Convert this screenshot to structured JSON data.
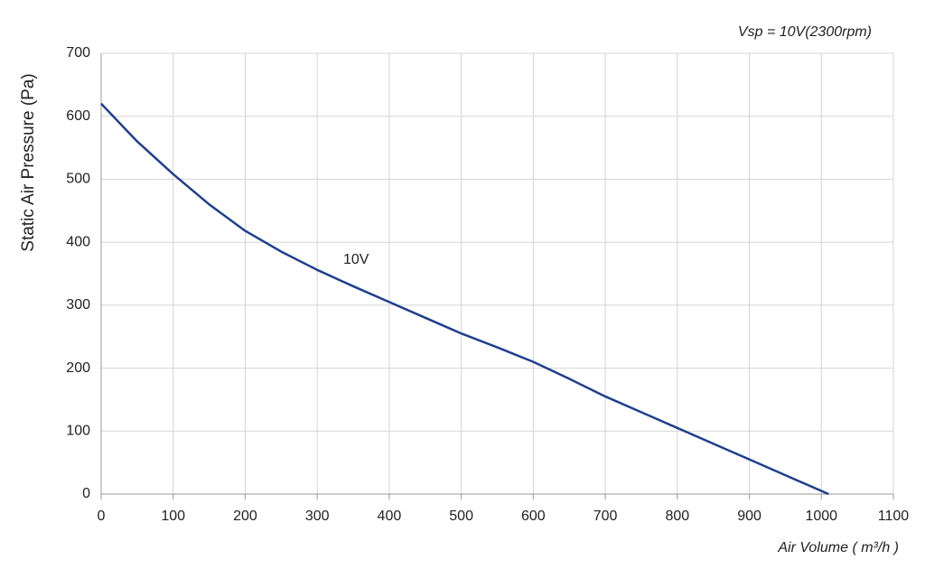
{
  "chart_data": {
    "type": "line",
    "subtitle": "Vsp = 10V(2300rpm)",
    "x_label": "Air Volume ( m³/h )",
    "y_label": "Static Air Pressure  (Pa)",
    "annotation": "10V",
    "x": [
      0,
      50,
      100,
      150,
      200,
      250,
      300,
      350,
      400,
      450,
      500,
      550,
      600,
      650,
      700,
      750,
      800,
      850,
      900,
      950,
      1010
    ],
    "series": [
      {
        "name": "10V",
        "color": "#1f3f8f",
        "values": [
          620,
          560,
          508,
          460,
          418,
          385,
          356,
          330,
          305,
          280,
          255,
          233,
          210,
          183,
          155,
          130,
          105,
          80,
          55,
          30,
          0
        ]
      }
    ],
    "xlim": [
      0,
      1100
    ],
    "xticks": [
      0,
      100,
      200,
      300,
      400,
      500,
      600,
      700,
      800,
      900,
      1000,
      1100
    ],
    "ylim": [
      0,
      700
    ],
    "yticks": [
      0,
      100,
      200,
      300,
      400,
      500,
      600,
      700
    ],
    "grid": true
  }
}
